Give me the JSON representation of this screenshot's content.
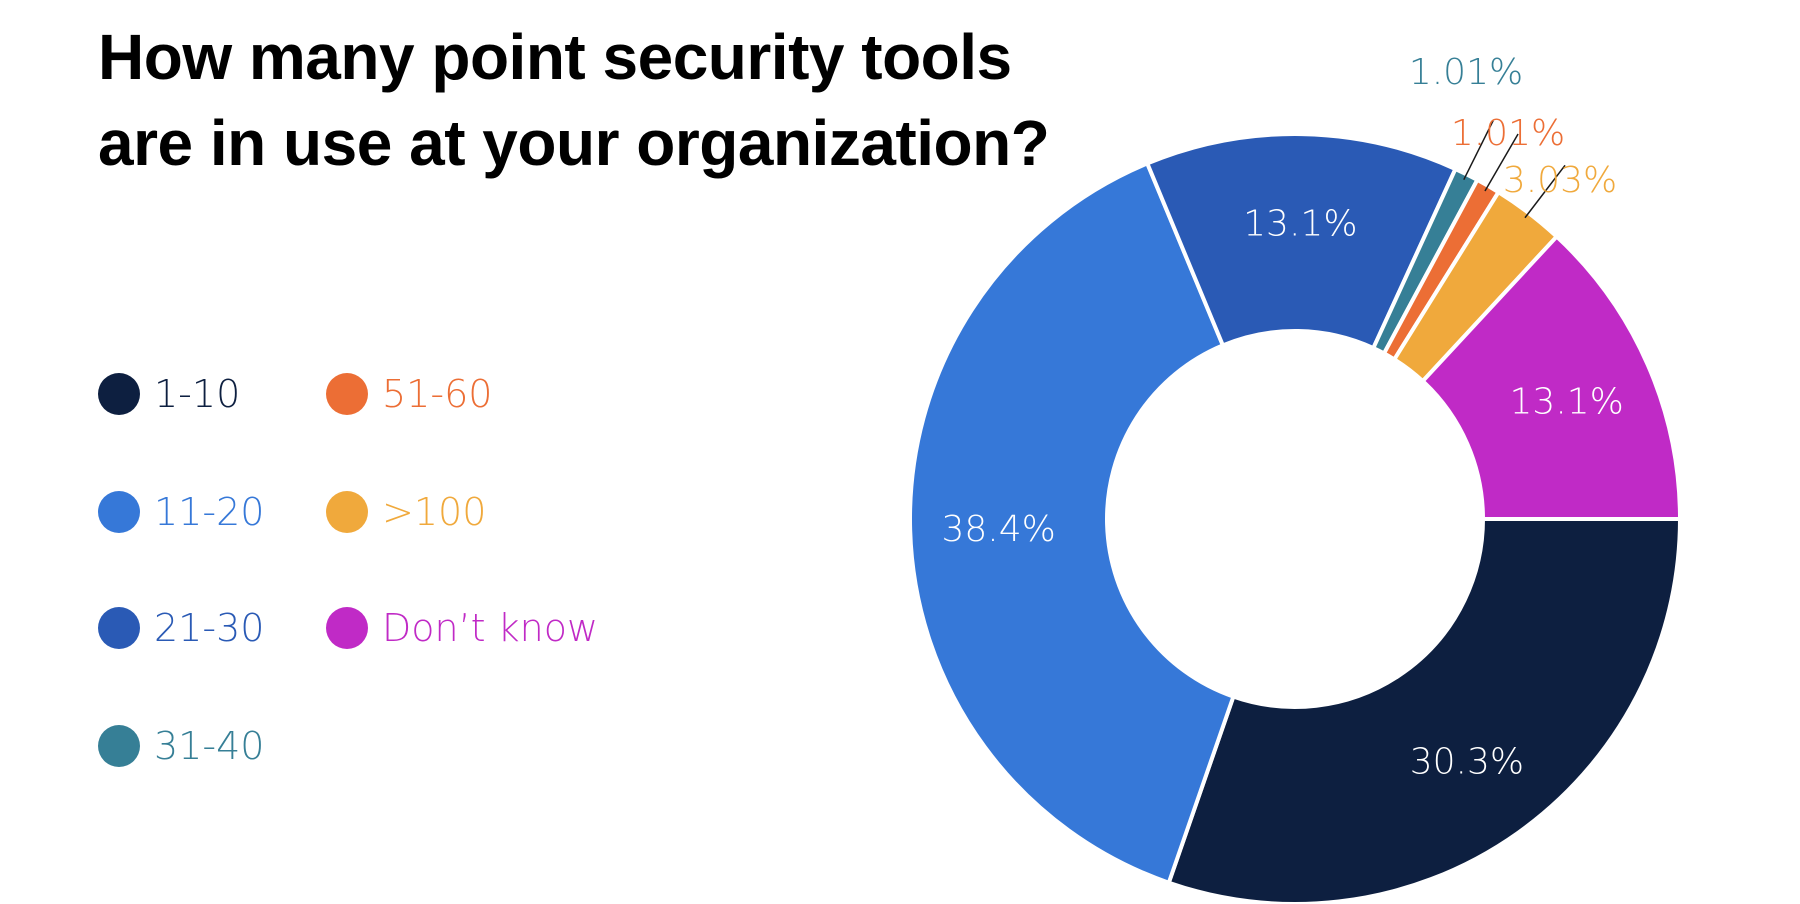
{
  "chart_data": {
    "type": "pie",
    "title": "How many point security tools are in use at your organization?",
    "title_lines": [
      "How many point security tools",
      "are in use at your organization?"
    ],
    "categories": [
      "1-10",
      "11-20",
      "21-30",
      "31-40",
      "51-60",
      ">100",
      "Don’t know"
    ],
    "values": [
      30.3,
      38.4,
      13.1,
      1.01,
      1.01,
      3.03,
      13.1
    ],
    "data_labels": [
      "30.3%",
      "38.4%",
      "13.1%",
      "1.01%",
      "1.01%",
      "3.03%",
      "13.1%"
    ],
    "colors": [
      "#0d1f40",
      "#3678d8",
      "#2a5ab5",
      "#367f96",
      "#ec6e35",
      "#f0a93c",
      "#c02ac6"
    ],
    "label_colors": [
      "#ffffff",
      "#ffffff",
      "#ffffff",
      "#367f96",
      "#ec6e35",
      "#f0a93c",
      "#ffffff"
    ],
    "donut": true,
    "start_angle": "bottom, clockwise order ends at 3 o'clock",
    "legend": {
      "position": "left",
      "columns": 2
    }
  }
}
